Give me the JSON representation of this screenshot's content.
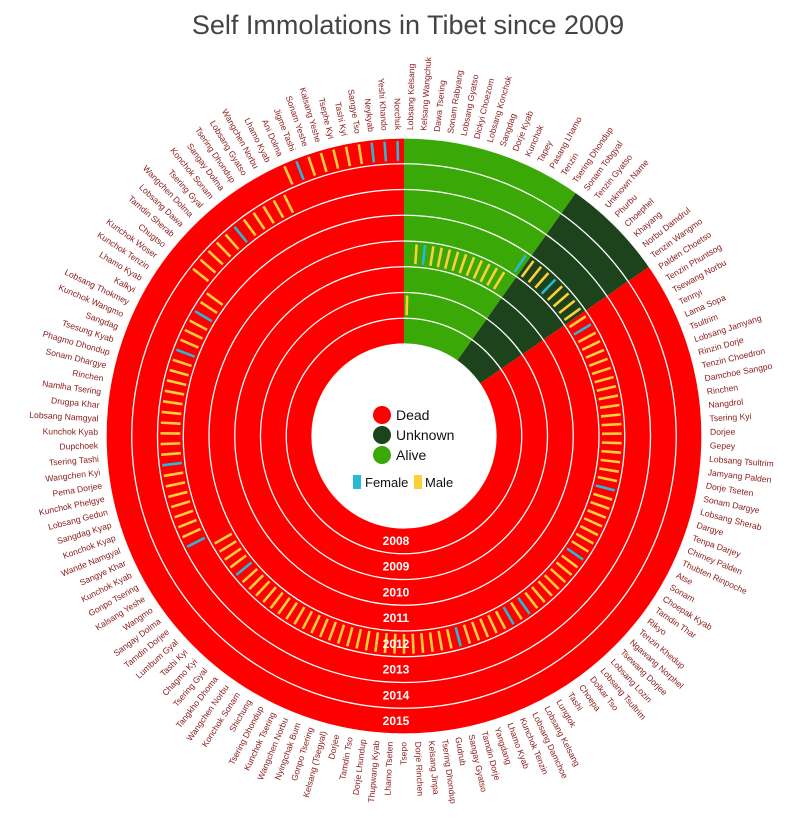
{
  "title": "Self Immolations in Tibet since 2009",
  "colors": {
    "dead": "#ff0000",
    "unknown": "#1d431c",
    "alive": "#3aa806",
    "female": "#29b8d6",
    "male": "#ffcf3a",
    "ring_divider": "#ffffff",
    "label": "#8b1a1a"
  },
  "legend": {
    "status": [
      {
        "key": "dead",
        "label": "Dead"
      },
      {
        "key": "unknown",
        "label": "Unknown"
      },
      {
        "key": "alive",
        "label": "Alive"
      }
    ],
    "gender": [
      {
        "key": "female",
        "label": "Female"
      },
      {
        "key": "male",
        "label": "Male"
      }
    ]
  },
  "chart_data": {
    "type": "radial",
    "years": [
      "2008",
      "2009",
      "2010",
      "2011",
      "2012",
      "2013",
      "2014",
      "2015"
    ],
    "status_sectors": [
      {
        "status": "alive",
        "count": 14
      },
      {
        "status": "unknown",
        "count": 8
      },
      {
        "status": "dead",
        "count": 121
      }
    ],
    "names": [
      "Lobsang Kelsang",
      "Kelsang Wangchuk",
      "Dawa Tsering",
      "Sonam Rabyang",
      "Lobsang Gyatso",
      "Dickyi Choezom",
      "Lobsang Konchok",
      "Sangdag",
      "Dorje Kyab",
      "Kunchok",
      "Tapey",
      "Pasang Lhamo",
      "Tenzin",
      "Tsering Dhondup",
      "Sonam Tobgyal",
      "Tenzin Gyatso",
      "Unknown Name",
      "Phurbu",
      "Choephel",
      "Khayang",
      "Norbu Damdrul",
      "Tenzin Wangmo",
      "Palden Choetso",
      "Tenzin Phuntsog",
      "Tsewang Norbu",
      "Tennyi",
      "Lama Sopa",
      "Tsultrim",
      "Lobsang Jamyang",
      "Rinzin Dorje",
      "Tenzin Choedron",
      "Damchoe Sangpo",
      "Rinchen",
      "Nangdrol",
      "Tsering Kyi",
      "Dorjee",
      "Gepey",
      "Lobsang Tsultrim",
      "Jamyang Palden",
      "Dorje Tseten",
      "Sonam Dargye",
      "Lobsang Sherab",
      "Dargye",
      "Tenpa Darjey",
      "Chimey Palden",
      "Thubten Rinpoche",
      "Atse",
      "Sonam",
      "Choepak Kyab",
      "Tamdin Thar",
      "Rikyo",
      "Tenzin Khedup",
      "Ngawang Norphel",
      "Tsewang Dorjee",
      "Lobsang Lozin",
      "Lobsang Tsultrim",
      "Dolkar Tso",
      "Choepa",
      "Tashi",
      "Lungtok",
      "Lobsang Kelsang",
      "Lobsang Damchoe",
      "Kunchok Tenzin",
      "Lhamo Kyab",
      "Yangdang",
      "Tamdin Dorje",
      "Sangay Gyatso",
      "Gudrub",
      "Tsering Dhondup",
      "Kelsang Jinpa",
      "Dorje Rinchen",
      "Tsepo",
      "Lhamo Tseten",
      "Thupwang Kyab",
      "Dorje Lhundup",
      "Tamdin Tso",
      "Dorjee",
      "Kelsang (Tsegyal)",
      "Gonpo Tsering",
      "Nyingchak Bum",
      "Wangchen Norbu",
      "Kunchok Tsering",
      "Tsering Dhondup",
      "Shichung",
      "Konchok Sonam",
      "Wangchen Norbu",
      "Tangkho Dhoma",
      "Tsering Gyal",
      "Chagmo Kyi",
      "Tashi Kyi",
      "Lumbum Gyal",
      "Tamdin Dorjee",
      "Sangay Dolma",
      "Wangmo",
      "Kalsang Yeshe",
      "Gonpo Tsering",
      "Kunchok Kyab",
      "Sangye Khar",
      "Wande Namgyal",
      "Konchok Kyap",
      "Sangdag Kyap",
      "Lobsang Gedun",
      "Kunchok Phelgye",
      "Pema Dorjee",
      "Wangchen Kyi",
      "Tsering Tashi",
      "Dupchoek",
      "Kunchok Kyab",
      "Lobsang Namgyal",
      "Drugpa Khar",
      "Namlha Tsering",
      "Rinchen",
      "Sonam Dhargye",
      "Phagmo Dhondup",
      "Tsesung Kyab",
      "Sangdag",
      "Kunchok Wangmo",
      "Lobsang Thokmey",
      "Kalkyi",
      "Lhamo Kyab",
      "Kunchok Tenzin",
      "Kunchok Woser",
      "Chugtso",
      "Tamdin Sherab",
      "Lobsang Dawa",
      "Wangchen Dolma",
      "Tsering Gyal",
      "Konchok Sonam",
      "Sangay Dolma",
      "Tsering Dhondup",
      "Lobsang Gyatso",
      "Wangchen Norbu",
      "Lhamo Kyab",
      "Ani Dolma",
      "Jigme Tashi",
      "Sonam Yeshe",
      "Kalsang Yeshe",
      "Tsephe Kyi",
      "Tashi Kyi",
      "Sangye Tso",
      "Neykyab",
      "Yeshi Khando",
      "Norchuk"
    ],
    "female_indices": [
      2,
      13,
      17,
      23,
      41,
      49,
      57,
      59,
      65,
      91,
      96,
      104,
      115,
      119,
      127,
      134,
      140,
      141,
      142
    ],
    "entries_per_year_approx": {
      "2009": 1,
      "2011": 12,
      "2012": 83,
      "2013": 26,
      "2014": 11,
      "2015": 10
    }
  }
}
